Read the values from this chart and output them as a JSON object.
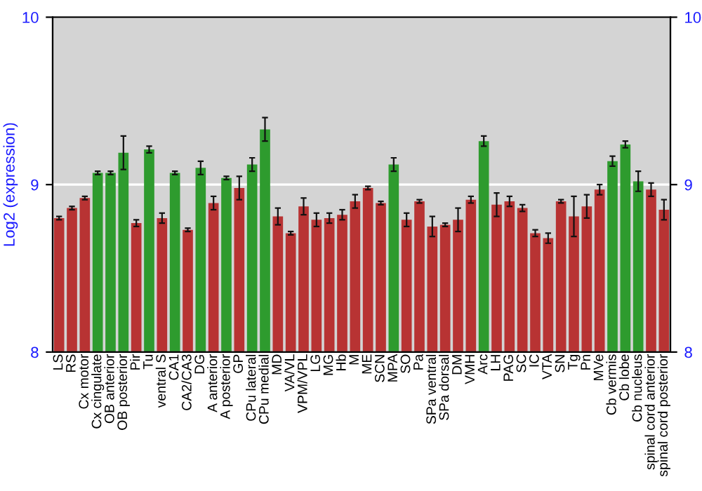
{
  "chart_data": {
    "type": "bar",
    "ylabel": "Log2 (expression)",
    "categories": [
      "LS",
      "RS",
      "Cx motor",
      "Cx cingulate",
      "OB anterior",
      "OB posterior",
      "Pir",
      "Tu",
      "ventral S",
      "CA1",
      "CA2/CA3",
      "DG",
      "A anterior",
      "A posterior",
      "GP",
      "CPu lateral",
      "CPu medial",
      "MD",
      "VA/VL",
      "VPM/VPL",
      "LG",
      "MG",
      "Hb",
      "M",
      "ME",
      "SCN",
      "MPA",
      "SO",
      "Pa",
      "SPa ventral",
      "SPa dorsal",
      "DM",
      "VMH",
      "Arc",
      "LH",
      "PAG",
      "SC",
      "IC",
      "VTA",
      "SN",
      "Tg",
      "Pn",
      "MVe",
      "Cb vermis",
      "Cb lobe",
      "Cb nucleus",
      "spinal cord anterior",
      "spinal cord posterior"
    ],
    "values": [
      8.8,
      8.86,
      8.92,
      9.07,
      9.07,
      9.19,
      8.77,
      9.21,
      8.8,
      9.07,
      8.73,
      9.1,
      8.89,
      9.04,
      8.98,
      9.12,
      9.33,
      8.81,
      8.71,
      8.87,
      8.79,
      8.8,
      8.82,
      8.9,
      8.98,
      8.89,
      9.12,
      8.79,
      8.9,
      8.75,
      8.76,
      8.79,
      8.91,
      9.26,
      8.88,
      8.9,
      8.86,
      8.71,
      8.68,
      8.9,
      8.81,
      8.87,
      8.97,
      9.14,
      9.24,
      9.02,
      8.97,
      8.85
    ],
    "errors": [
      0.01,
      0.01,
      0.01,
      0.01,
      0.01,
      0.1,
      0.02,
      0.02,
      0.03,
      0.01,
      0.01,
      0.04,
      0.04,
      0.01,
      0.07,
      0.04,
      0.07,
      0.05,
      0.01,
      0.05,
      0.04,
      0.03,
      0.03,
      0.04,
      0.01,
      0.01,
      0.04,
      0.04,
      0.01,
      0.06,
      0.01,
      0.07,
      0.02,
      0.03,
      0.07,
      0.03,
      0.02,
      0.02,
      0.03,
      0.01,
      0.12,
      0.07,
      0.03,
      0.03,
      0.02,
      0.06,
      0.04,
      0.06
    ],
    "colors": [
      "#b83333",
      "#b83333",
      "#b83333",
      "#2e9b2e",
      "#2e9b2e",
      "#2e9b2e",
      "#b83333",
      "#2e9b2e",
      "#b83333",
      "#2e9b2e",
      "#b83333",
      "#2e9b2e",
      "#b83333",
      "#2e9b2e",
      "#b83333",
      "#2e9b2e",
      "#2e9b2e",
      "#b83333",
      "#b83333",
      "#b83333",
      "#b83333",
      "#b83333",
      "#b83333",
      "#b83333",
      "#b83333",
      "#b83333",
      "#2e9b2e",
      "#b83333",
      "#b83333",
      "#b83333",
      "#b83333",
      "#b83333",
      "#b83333",
      "#2e9b2e",
      "#b83333",
      "#b83333",
      "#b83333",
      "#b83333",
      "#b83333",
      "#b83333",
      "#b83333",
      "#b83333",
      "#b83333",
      "#2e9b2e",
      "#2e9b2e",
      "#2e9b2e",
      "#b83333",
      "#b83333"
    ],
    "ylim": [
      8,
      10
    ],
    "yticks": [
      8,
      9,
      10
    ],
    "y2lim": [
      8,
      10
    ],
    "y2ticks": [
      8,
      9,
      10
    ],
    "grid": "y"
  }
}
